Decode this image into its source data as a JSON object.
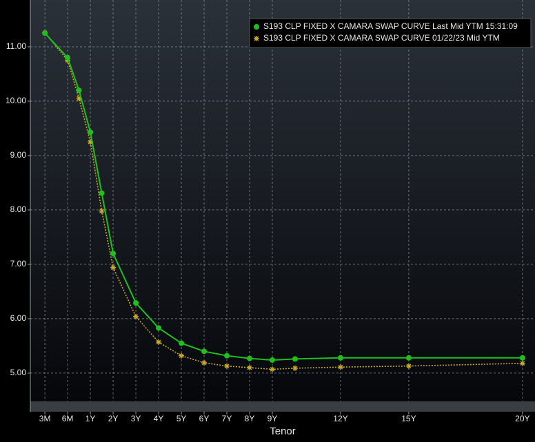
{
  "chart_data": {
    "type": "line",
    "x_label": "Tenor",
    "x": [
      0,
      1,
      1.5,
      2,
      2.5,
      3,
      4,
      5,
      6,
      7,
      8,
      9,
      10,
      11,
      13,
      16,
      21
    ],
    "series": [
      {
        "name": "S193 CLP FIXED X CAMARA SWAP CURVE Last Mid YTM 15:31:09",
        "color": "#1fbf1f",
        "marker": "circle",
        "values": [
          11.25,
          10.8,
          10.2,
          9.43,
          8.31,
          7.2,
          6.29,
          5.83,
          5.55,
          5.4,
          5.32,
          5.27,
          5.24,
          5.26,
          5.28,
          5.28,
          5.28
        ]
      },
      {
        "name": "S193 CLP FIXED X CAMARA SWAP CURVE 01/22/23 Mid YTM",
        "color": "#c9a92c",
        "marker": "star",
        "values": [
          11.26,
          10.75,
          10.05,
          9.25,
          7.98,
          6.94,
          6.04,
          5.57,
          5.32,
          5.19,
          5.13,
          5.1,
          5.07,
          5.09,
          5.11,
          5.13,
          5.18
        ]
      }
    ],
    "xlim": [
      -0.64,
      21.55
    ],
    "xticks": [
      {
        "value": 0,
        "label": "3M"
      },
      {
        "value": 1,
        "label": "6M"
      },
      {
        "value": 2,
        "label": "1Y"
      },
      {
        "value": 3,
        "label": "2Y"
      },
      {
        "value": 4,
        "label": "3Y"
      },
      {
        "value": 5,
        "label": "4Y"
      },
      {
        "value": 6,
        "label": "5Y"
      },
      {
        "value": 7,
        "label": "6Y"
      },
      {
        "value": 8,
        "label": "7Y"
      },
      {
        "value": 9,
        "label": "8Y"
      },
      {
        "value": 10,
        "label": "9Y"
      },
      {
        "value": 13,
        "label": "12Y"
      },
      {
        "value": 16,
        "label": "15Y"
      },
      {
        "value": 21,
        "label": "20Y"
      }
    ],
    "ylim": [
      4.48,
      11.86
    ],
    "yticks": [
      {
        "value": 5,
        "label": "5.00"
      },
      {
        "value": 6,
        "label": "6.00"
      },
      {
        "value": 7,
        "label": "7.00"
      },
      {
        "value": 8,
        "label": "8.00"
      },
      {
        "value": 9,
        "label": "9.00"
      },
      {
        "value": 10,
        "label": "10.00"
      },
      {
        "value": 11,
        "label": "11.00"
      }
    ],
    "grid": true,
    "legend": "top-right"
  }
}
